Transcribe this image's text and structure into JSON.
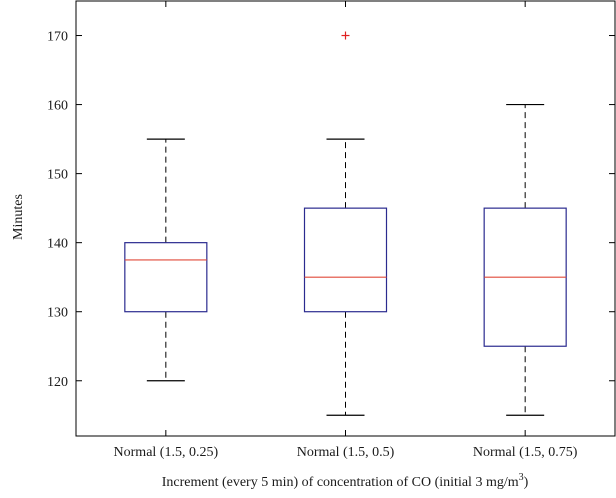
{
  "chart_data": {
    "type": "box",
    "title": "",
    "xlabel": "Increment (every 5 min) of concentration of CO (initial 3 mg/m",
    "xlabel_superscript": "3",
    "xlabel_suffix": ")",
    "ylabel": "Minutes",
    "ylim": [
      112,
      175
    ],
    "yticks": [
      120,
      130,
      140,
      150,
      160,
      170
    ],
    "grid": false,
    "colors": {
      "box": "#2b2b8f",
      "median": "#e04a3a",
      "whisker": "#000000",
      "outlier": "#e02020"
    },
    "categories": [
      "Normal (1.5, 0.25)",
      "Normal (1.5, 0.5)",
      "Normal (1.5, 0.75)"
    ],
    "boxes": [
      {
        "category": "Normal (1.5, 0.25)",
        "whisker_low": 120,
        "q1": 130,
        "median": 137.5,
        "q3": 140,
        "whisker_high": 155,
        "outliers": []
      },
      {
        "category": "Normal (1.5, 0.5)",
        "whisker_low": 115,
        "q1": 130,
        "median": 135,
        "q3": 145,
        "whisker_high": 155,
        "outliers": [
          170
        ]
      },
      {
        "category": "Normal (1.5, 0.75)",
        "whisker_low": 115,
        "q1": 125,
        "median": 135,
        "q3": 145,
        "whisker_high": 160,
        "outliers": []
      }
    ]
  }
}
